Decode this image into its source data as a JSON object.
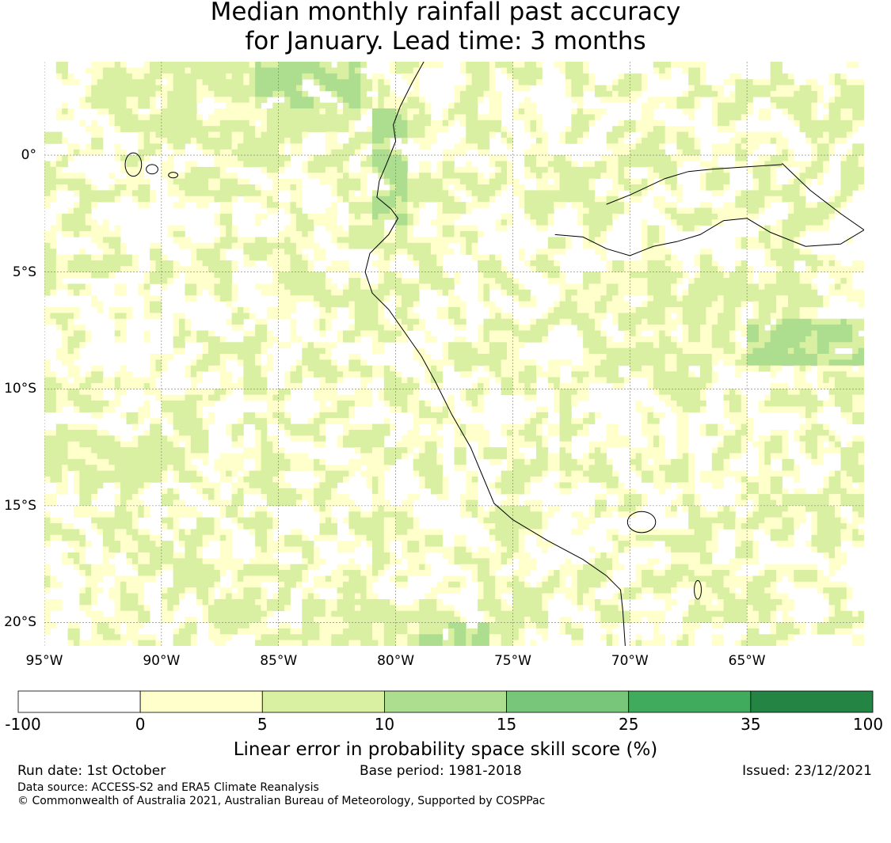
{
  "title_line1": "Median monthly rainfall past accuracy",
  "title_line2": "for January. Lead time: 3 months",
  "map": {
    "lon_range": [
      -95,
      -60
    ],
    "lat_range": [
      -21,
      4
    ],
    "lon_ticks": [
      {
        "value": -95,
        "label": "95°W"
      },
      {
        "value": -90,
        "label": "90°W"
      },
      {
        "value": -85,
        "label": "85°W"
      },
      {
        "value": -80,
        "label": "80°W"
      },
      {
        "value": -75,
        "label": "75°W"
      },
      {
        "value": -70,
        "label": "70°W"
      },
      {
        "value": -65,
        "label": "65°W"
      }
    ],
    "lat_ticks": [
      {
        "value": 0,
        "label": "0°"
      },
      {
        "value": -5,
        "label": "5°S"
      },
      {
        "value": -10,
        "label": "10°S"
      },
      {
        "value": -15,
        "label": "15°S"
      },
      {
        "value": -20,
        "label": "20°S"
      }
    ],
    "grid": true,
    "skill_zones": [
      {
        "name": "north-ocean-band",
        "class": 2,
        "lon": [
          -93,
          -82
        ],
        "lat": [
          1,
          4
        ]
      },
      {
        "name": "north-ocean-core",
        "class": 3,
        "lon": [
          -86,
          -81
        ],
        "lat": [
          2,
          4
        ]
      },
      {
        "name": "ecuador-coast",
        "class": 3,
        "lon": [
          -81,
          -79.5
        ],
        "lat": [
          -3,
          2
        ]
      },
      {
        "name": "gulf-guayaquil",
        "class": 2,
        "lon": [
          -82,
          -79
        ],
        "lat": [
          -4,
          -2
        ]
      },
      {
        "name": "central-amazon",
        "class": 2,
        "lon": [
          -72,
          -62
        ],
        "lat": [
          -9,
          -5
        ]
      },
      {
        "name": "east-amazon",
        "class": 3,
        "lon": [
          -65,
          -60
        ],
        "lat": [
          -9,
          -7
        ]
      },
      {
        "name": "southwest-ocean",
        "class": 2,
        "lon": [
          -95,
          -88
        ],
        "lat": [
          -14,
          -12
        ]
      },
      {
        "name": "south-ocean",
        "class": 2,
        "lon": [
          -84,
          -74
        ],
        "lat": [
          -21,
          -19
        ]
      },
      {
        "name": "far-south-ocean",
        "class": 3,
        "lon": [
          -79,
          -76
        ],
        "lat": [
          -21,
          -20
        ]
      }
    ],
    "coastline": [
      [
        -78.8,
        4.0
      ],
      [
        -79.3,
        3.1
      ],
      [
        -79.8,
        2.1
      ],
      [
        -80.1,
        1.3
      ],
      [
        -80.0,
        0.6
      ],
      [
        -80.4,
        -0.4
      ],
      [
        -80.7,
        -1.1
      ],
      [
        -80.8,
        -1.8
      ],
      [
        -80.2,
        -2.3
      ],
      [
        -79.9,
        -2.7
      ],
      [
        -80.3,
        -3.4
      ],
      [
        -81.1,
        -4.2
      ],
      [
        -81.3,
        -5.0
      ],
      [
        -81.0,
        -5.9
      ],
      [
        -80.3,
        -6.6
      ],
      [
        -79.6,
        -7.6
      ],
      [
        -78.9,
        -8.6
      ],
      [
        -78.3,
        -9.7
      ],
      [
        -77.6,
        -11.1
      ],
      [
        -76.8,
        -12.5
      ],
      [
        -76.3,
        -13.7
      ],
      [
        -75.8,
        -14.9
      ],
      [
        -75.0,
        -15.6
      ],
      [
        -73.5,
        -16.5
      ],
      [
        -72.0,
        -17.3
      ],
      [
        -71.0,
        -18.0
      ],
      [
        -70.4,
        -18.6
      ],
      [
        -70.3,
        -19.5
      ],
      [
        -70.2,
        -21.0
      ]
    ],
    "rivers": [
      [
        [
          -63.5,
          -0.4
        ],
        [
          -65.0,
          -0.5
        ],
        [
          -66.5,
          -0.6
        ],
        [
          -67.5,
          -0.7
        ],
        [
          -68.5,
          -1.0
        ],
        [
          -70.0,
          -1.7
        ],
        [
          -71.0,
          -2.1
        ]
      ],
      [
        [
          -63.5,
          -0.35
        ],
        [
          -62.3,
          -1.5
        ],
        [
          -61.0,
          -2.5
        ],
        [
          -60.0,
          -3.2
        ]
      ],
      [
        [
          -73.2,
          -3.4
        ],
        [
          -72.0,
          -3.5
        ],
        [
          -71.0,
          -4.0
        ],
        [
          -70.0,
          -4.3
        ],
        [
          -69.0,
          -3.9
        ],
        [
          -68.0,
          -3.7
        ],
        [
          -67.0,
          -3.4
        ],
        [
          -66.0,
          -2.8
        ],
        [
          -65.0,
          -2.7
        ],
        [
          -64.0,
          -3.3
        ],
        [
          -62.5,
          -3.9
        ],
        [
          -61.0,
          -3.8
        ],
        [
          -60.0,
          -3.2
        ]
      ]
    ],
    "islands": [
      {
        "name": "galapagos-isabela",
        "lon": -91.2,
        "lat": -0.4,
        "rx": 0.35,
        "ry": 0.5
      },
      {
        "name": "galapagos-santa-cruz",
        "lon": -90.4,
        "lat": -0.6,
        "rx": 0.25,
        "ry": 0.2
      },
      {
        "name": "galapagos-san-cristobal",
        "lon": -89.5,
        "lat": -0.85,
        "rx": 0.2,
        "ry": 0.12
      },
      {
        "name": "titicaca-lake",
        "lon": -69.5,
        "lat": -15.7,
        "rx": 0.6,
        "ry": 0.45
      },
      {
        "name": "poopo-lake",
        "lon": -67.1,
        "lat": -18.6,
        "rx": 0.15,
        "ry": 0.4
      }
    ]
  },
  "colorbar": {
    "ticks": [
      "-100",
      "0",
      "5",
      "10",
      "15",
      "25",
      "35",
      "100"
    ],
    "colors": [
      "#ffffff",
      "#ffffcc",
      "#d9f0a3",
      "#addd8e",
      "#78c679",
      "#41ab5d",
      "#238443"
    ],
    "label": "Linear error in probability space skill score (%)"
  },
  "footer": {
    "run_date": "Run date: 1st October",
    "base_period": "Base period: 1981-2018",
    "issued": "Issued: 23/12/2021",
    "data_source": "Data source: ACCESS-S2 and ERA5 Climate Reanalysis",
    "copyright": "© Commonwealth of Australia 2021, Australian Bureau of Meteorology, Supported by COSPPac"
  }
}
